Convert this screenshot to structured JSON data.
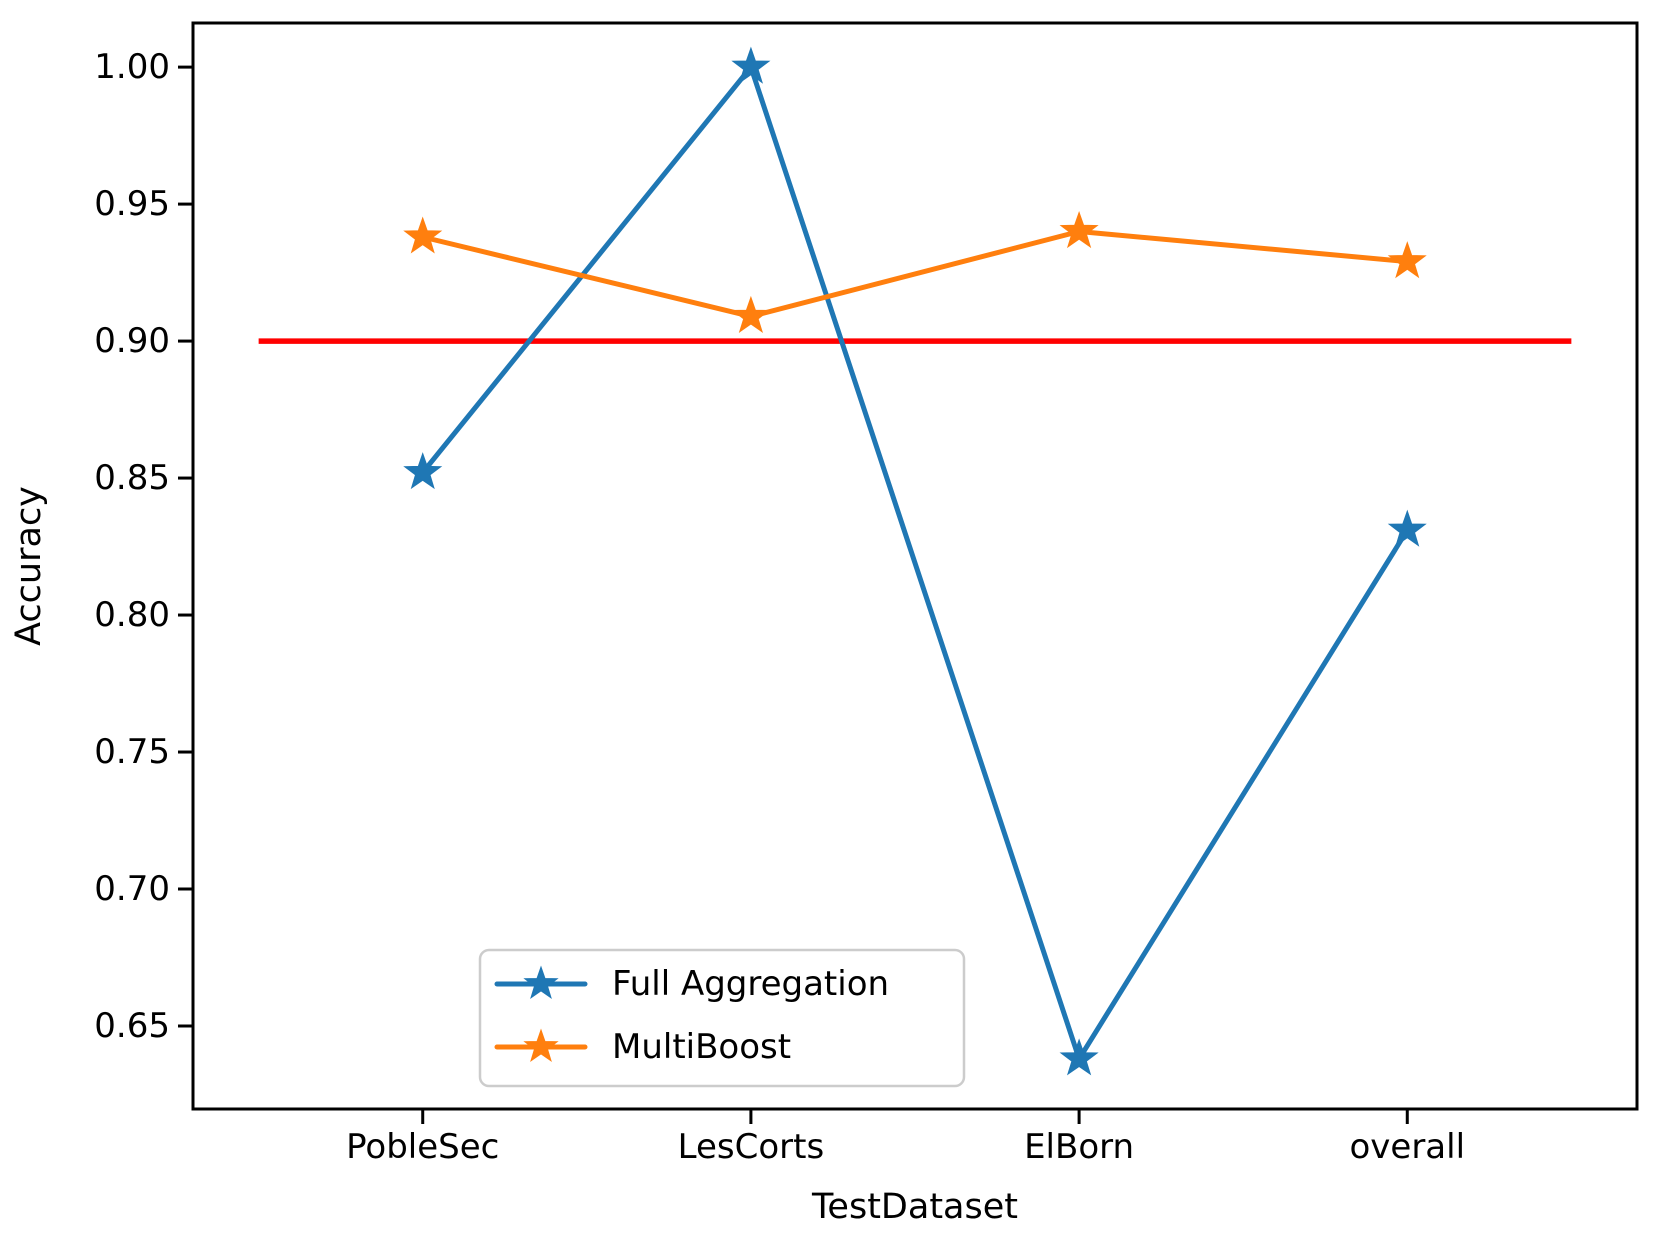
{
  "chart_data": {
    "type": "line",
    "title": "",
    "xlabel": "TestDataset",
    "ylabel": "Accuracy",
    "categories": [
      "PobleSec",
      "LesCorts",
      "ElBorn",
      "overall"
    ],
    "series": [
      {
        "name": "Full Aggregation",
        "color": "#1f77b4",
        "marker": "star",
        "values": [
          0.852,
          1.0,
          0.638,
          0.831
        ]
      },
      {
        "name": "MultiBoost",
        "color": "#ff7f0e",
        "marker": "star",
        "values": [
          0.938,
          0.909,
          0.94,
          0.929
        ]
      }
    ],
    "reference_line": {
      "y": 0.9,
      "color": "#ff0000",
      "x_start": -0.5,
      "x_end": 3.5
    },
    "yticks": [
      0.65,
      0.7,
      0.75,
      0.8,
      0.85,
      0.9,
      0.95,
      1.0
    ],
    "ytick_labels": [
      "0.65",
      "0.70",
      "0.75",
      "0.80",
      "0.85",
      "0.90",
      "0.95",
      "1.00"
    ],
    "ylim": [
      0.6197,
      1.0161
    ],
    "xlim": [
      -0.7,
      3.7
    ],
    "grid": false,
    "legend": {
      "position": "lower left-center",
      "entries": [
        "Full Aggregation",
        "MultiBoost"
      ]
    }
  }
}
